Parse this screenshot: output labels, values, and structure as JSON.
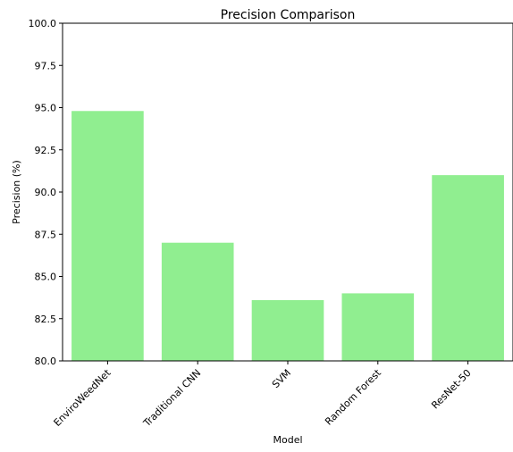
{
  "chart_data": {
    "type": "bar",
    "title": "Precision Comparison",
    "xlabel": "Model",
    "ylabel": "Precision (%)",
    "categories": [
      "EnviroWeedNet",
      "Traditional CNN",
      "SVM",
      "Random Forest",
      "ResNet-50"
    ],
    "values": [
      94.8,
      87.0,
      83.6,
      84.0,
      91.0
    ],
    "ylim": [
      80.0,
      100.0
    ],
    "yticks": [
      "80.0",
      "82.5",
      "85.0",
      "87.5",
      "90.0",
      "92.5",
      "95.0",
      "97.5",
      "100.0"
    ],
    "grid": false,
    "bar_color": "#90ee90"
  }
}
